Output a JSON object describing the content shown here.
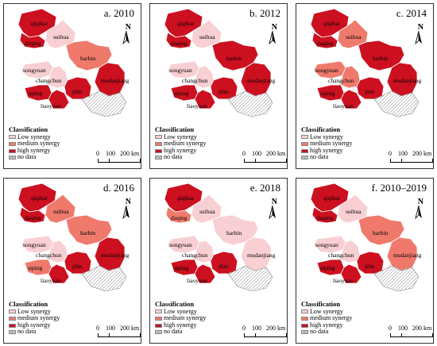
{
  "colors": {
    "low": "#f8cfd3",
    "medium": "#ef7a6c",
    "high": "#cc1020",
    "border": "#ffffff",
    "outline": "#777777"
  },
  "legend": {
    "title": "Classification",
    "items": [
      {
        "label": "Low synergy",
        "color": "#f8cfd3"
      },
      {
        "label": "medium synergy",
        "color": "#ef7a6c"
      },
      {
        "label": "high synergy",
        "color": "#cc1020"
      },
      {
        "label": "no data",
        "color": "hatch"
      }
    ]
  },
  "scale_labels": [
    "0",
    "100",
    "200 km"
  ],
  "north_label": "N",
  "cities": [
    "qiqihar",
    "suihua",
    "daqing",
    "harbin",
    "songyuan",
    "changchun",
    "mudanjiang",
    "siping",
    "jilin",
    "liaoyuan"
  ],
  "panels": [
    {
      "title": "a. 2010",
      "classes": {
        "qiqihar": "high",
        "suihua": "low",
        "daqing": "high",
        "harbin": "medium",
        "songyuan": "low",
        "changchun": "low",
        "mudanjiang": "high",
        "siping": "high",
        "jilin": "high",
        "liaoyuan": "high"
      }
    },
    {
      "title": "b. 2012",
      "classes": {
        "qiqihar": "high",
        "suihua": "low",
        "daqing": "high",
        "harbin": "high",
        "songyuan": "low",
        "changchun": "low",
        "mudanjiang": "high",
        "siping": "high",
        "jilin": "high",
        "liaoyuan": "high"
      }
    },
    {
      "title": "c. 2014",
      "classes": {
        "qiqihar": "high",
        "suihua": "medium",
        "daqing": "high",
        "harbin": "high",
        "songyuan": "medium",
        "changchun": "medium",
        "mudanjiang": "high",
        "siping": "high",
        "jilin": "high",
        "liaoyuan": "high"
      }
    },
    {
      "title": "d. 2016",
      "classes": {
        "qiqihar": "high",
        "suihua": "medium",
        "daqing": "high",
        "harbin": "medium",
        "songyuan": "low",
        "changchun": "low",
        "mudanjiang": "high",
        "siping": "medium",
        "jilin": "high",
        "liaoyuan": "high"
      }
    },
    {
      "title": "e. 2018",
      "classes": {
        "qiqihar": "high",
        "suihua": "low",
        "daqing": "medium",
        "harbin": "low",
        "songyuan": "low",
        "changchun": "low",
        "mudanjiang": "low",
        "siping": "high",
        "jilin": "high",
        "liaoyuan": "high"
      }
    },
    {
      "title": "f. 2010–2019",
      "classes": {
        "qiqihar": "high",
        "suihua": "low",
        "daqing": "high",
        "harbin": "medium",
        "songyuan": "low",
        "changchun": "low",
        "mudanjiang": "medium",
        "siping": "high",
        "jilin": "high",
        "liaoyuan": "high"
      }
    }
  ]
}
